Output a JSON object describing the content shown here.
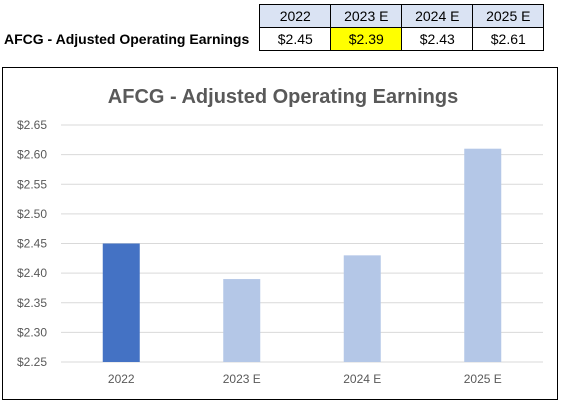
{
  "table": {
    "row_label": "AFCG - Adjusted Operating Earnings",
    "headers": [
      "2022",
      "2023 E",
      "2024 E",
      "2025 E"
    ],
    "values": [
      "$2.45",
      "$2.39",
      "$2.43",
      "$2.61"
    ],
    "highlight_color": "#ffff00",
    "header_bg": "#dae3f3"
  },
  "chart_data": {
    "type": "bar",
    "title": "AFCG - Adjusted Operating Earnings",
    "categories": [
      "2022",
      "2023 E",
      "2024 E",
      "2025 E"
    ],
    "values": [
      2.45,
      2.39,
      2.43,
      2.61
    ],
    "colors": [
      "#4472c4",
      "#b4c7e7",
      "#b4c7e7",
      "#b4c7e7"
    ],
    "ylim": [
      2.25,
      2.65
    ],
    "yticks": [
      2.25,
      2.3,
      2.35,
      2.4,
      2.45,
      2.5,
      2.55,
      2.6,
      2.65
    ],
    "ytick_labels": [
      "$2.25",
      "$2.30",
      "$2.35",
      "$2.40",
      "$2.45",
      "$2.50",
      "$2.55",
      "$2.60",
      "$2.65"
    ],
    "grid": true,
    "xlabel": "",
    "ylabel": ""
  }
}
